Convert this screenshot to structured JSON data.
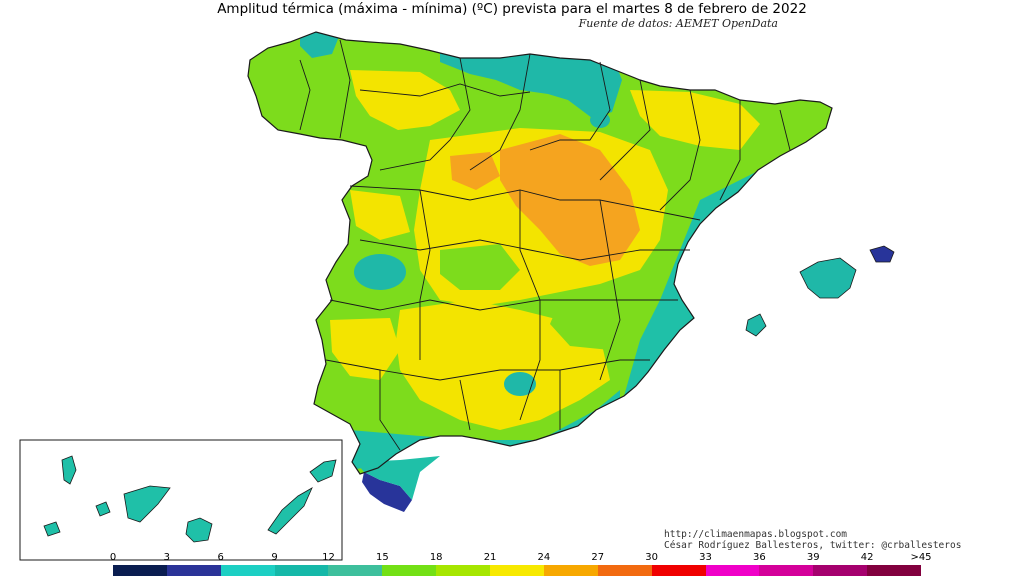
{
  "header": {
    "title": "Amplitud térmica (máxima - mínima) (ºC) prevista para el martes 8 de febrero de 2022",
    "source": "Fuente de datos: AEMET OpenData"
  },
  "credits": {
    "url": "http://climaenmapas.blogspot.com",
    "author": "César Rodríguez Ballesteros, twitter: @crballesteros"
  },
  "legend": {
    "ticks": [
      "0",
      "3",
      "6",
      "9",
      "12",
      "15",
      "18",
      "21",
      "24",
      "27",
      "30",
      "33",
      "36",
      "39",
      "42",
      ">45"
    ],
    "colors": [
      "#0a1d50",
      "#2a3398",
      "#1ccfc3",
      "#15b8a8",
      "#3dbf9c",
      "#73e015",
      "#a6e600",
      "#f7e900",
      "#f7a800",
      "#f26a10",
      "#f00000",
      "#f000c8",
      "#d4009a",
      "#a5006e",
      "#82003e",
      "#6a1010"
    ]
  },
  "map": {
    "palette": {
      "sea": "#ffffff",
      "green": "#7ddc1c",
      "yellow": "#f3e400",
      "orange": "#f5a41f",
      "teal": "#1fc0a8",
      "tealdark": "#14a6a0",
      "blue": "#28349a",
      "border": "#1a1a1a"
    }
  }
}
